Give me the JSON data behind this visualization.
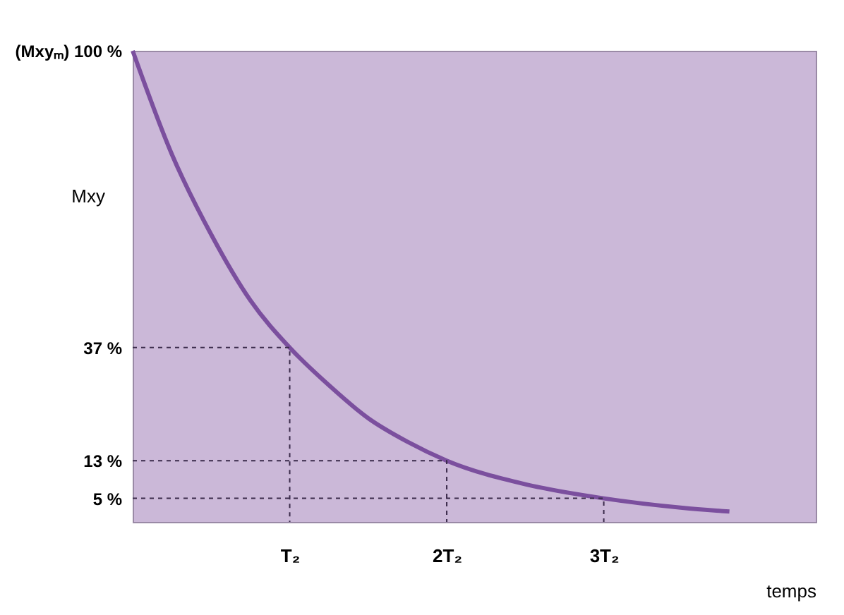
{
  "chart_data": {
    "type": "line",
    "xlabel": "temps",
    "ylabel": "Mxy",
    "x": [
      0,
      0.25,
      0.5,
      0.75,
      1,
      1.25,
      1.5,
      1.75,
      2,
      2.5,
      3,
      3.5,
      3.8
    ],
    "series": [
      {
        "color": "#7b4f9e",
        "values": [
          100,
          78,
          61,
          47,
          37,
          29,
          22,
          17,
          13,
          8,
          5,
          3,
          2.2
        ]
      },
      {
        "color": "#3a2a4a",
        "x": [
          0,
          1,
          1
        ],
        "values": [
          37,
          37,
          0
        ],
        "line_style": "dashed"
      },
      {
        "color": "#3a2a4a",
        "x": [
          0,
          2,
          2
        ],
        "values": [
          13,
          13,
          0
        ],
        "line_style": "dashed"
      },
      {
        "color": "#3a2a4a",
        "x": [
          0,
          3,
          3
        ],
        "values": [
          5,
          5,
          0
        ],
        "line_style": "dashed"
      }
    ],
    "xlim": [
      0,
      4.35
    ],
    "ylim": [
      0,
      100
    ],
    "xticks": [
      {
        "value": 1,
        "label": "T₂"
      },
      {
        "value": 2,
        "label": "2T₂"
      },
      {
        "value": 3,
        "label": "3T₂"
      }
    ],
    "yticks": [
      {
        "value": 5,
        "label": "5 %"
      },
      {
        "value": 13,
        "label": "13 %"
      },
      {
        "value": 37,
        "label": "37 %"
      },
      {
        "value": 100,
        "label": "(Mxyₘ) 100 %"
      }
    ],
    "grid": false,
    "marker": "none",
    "line_style": "solid"
  }
}
